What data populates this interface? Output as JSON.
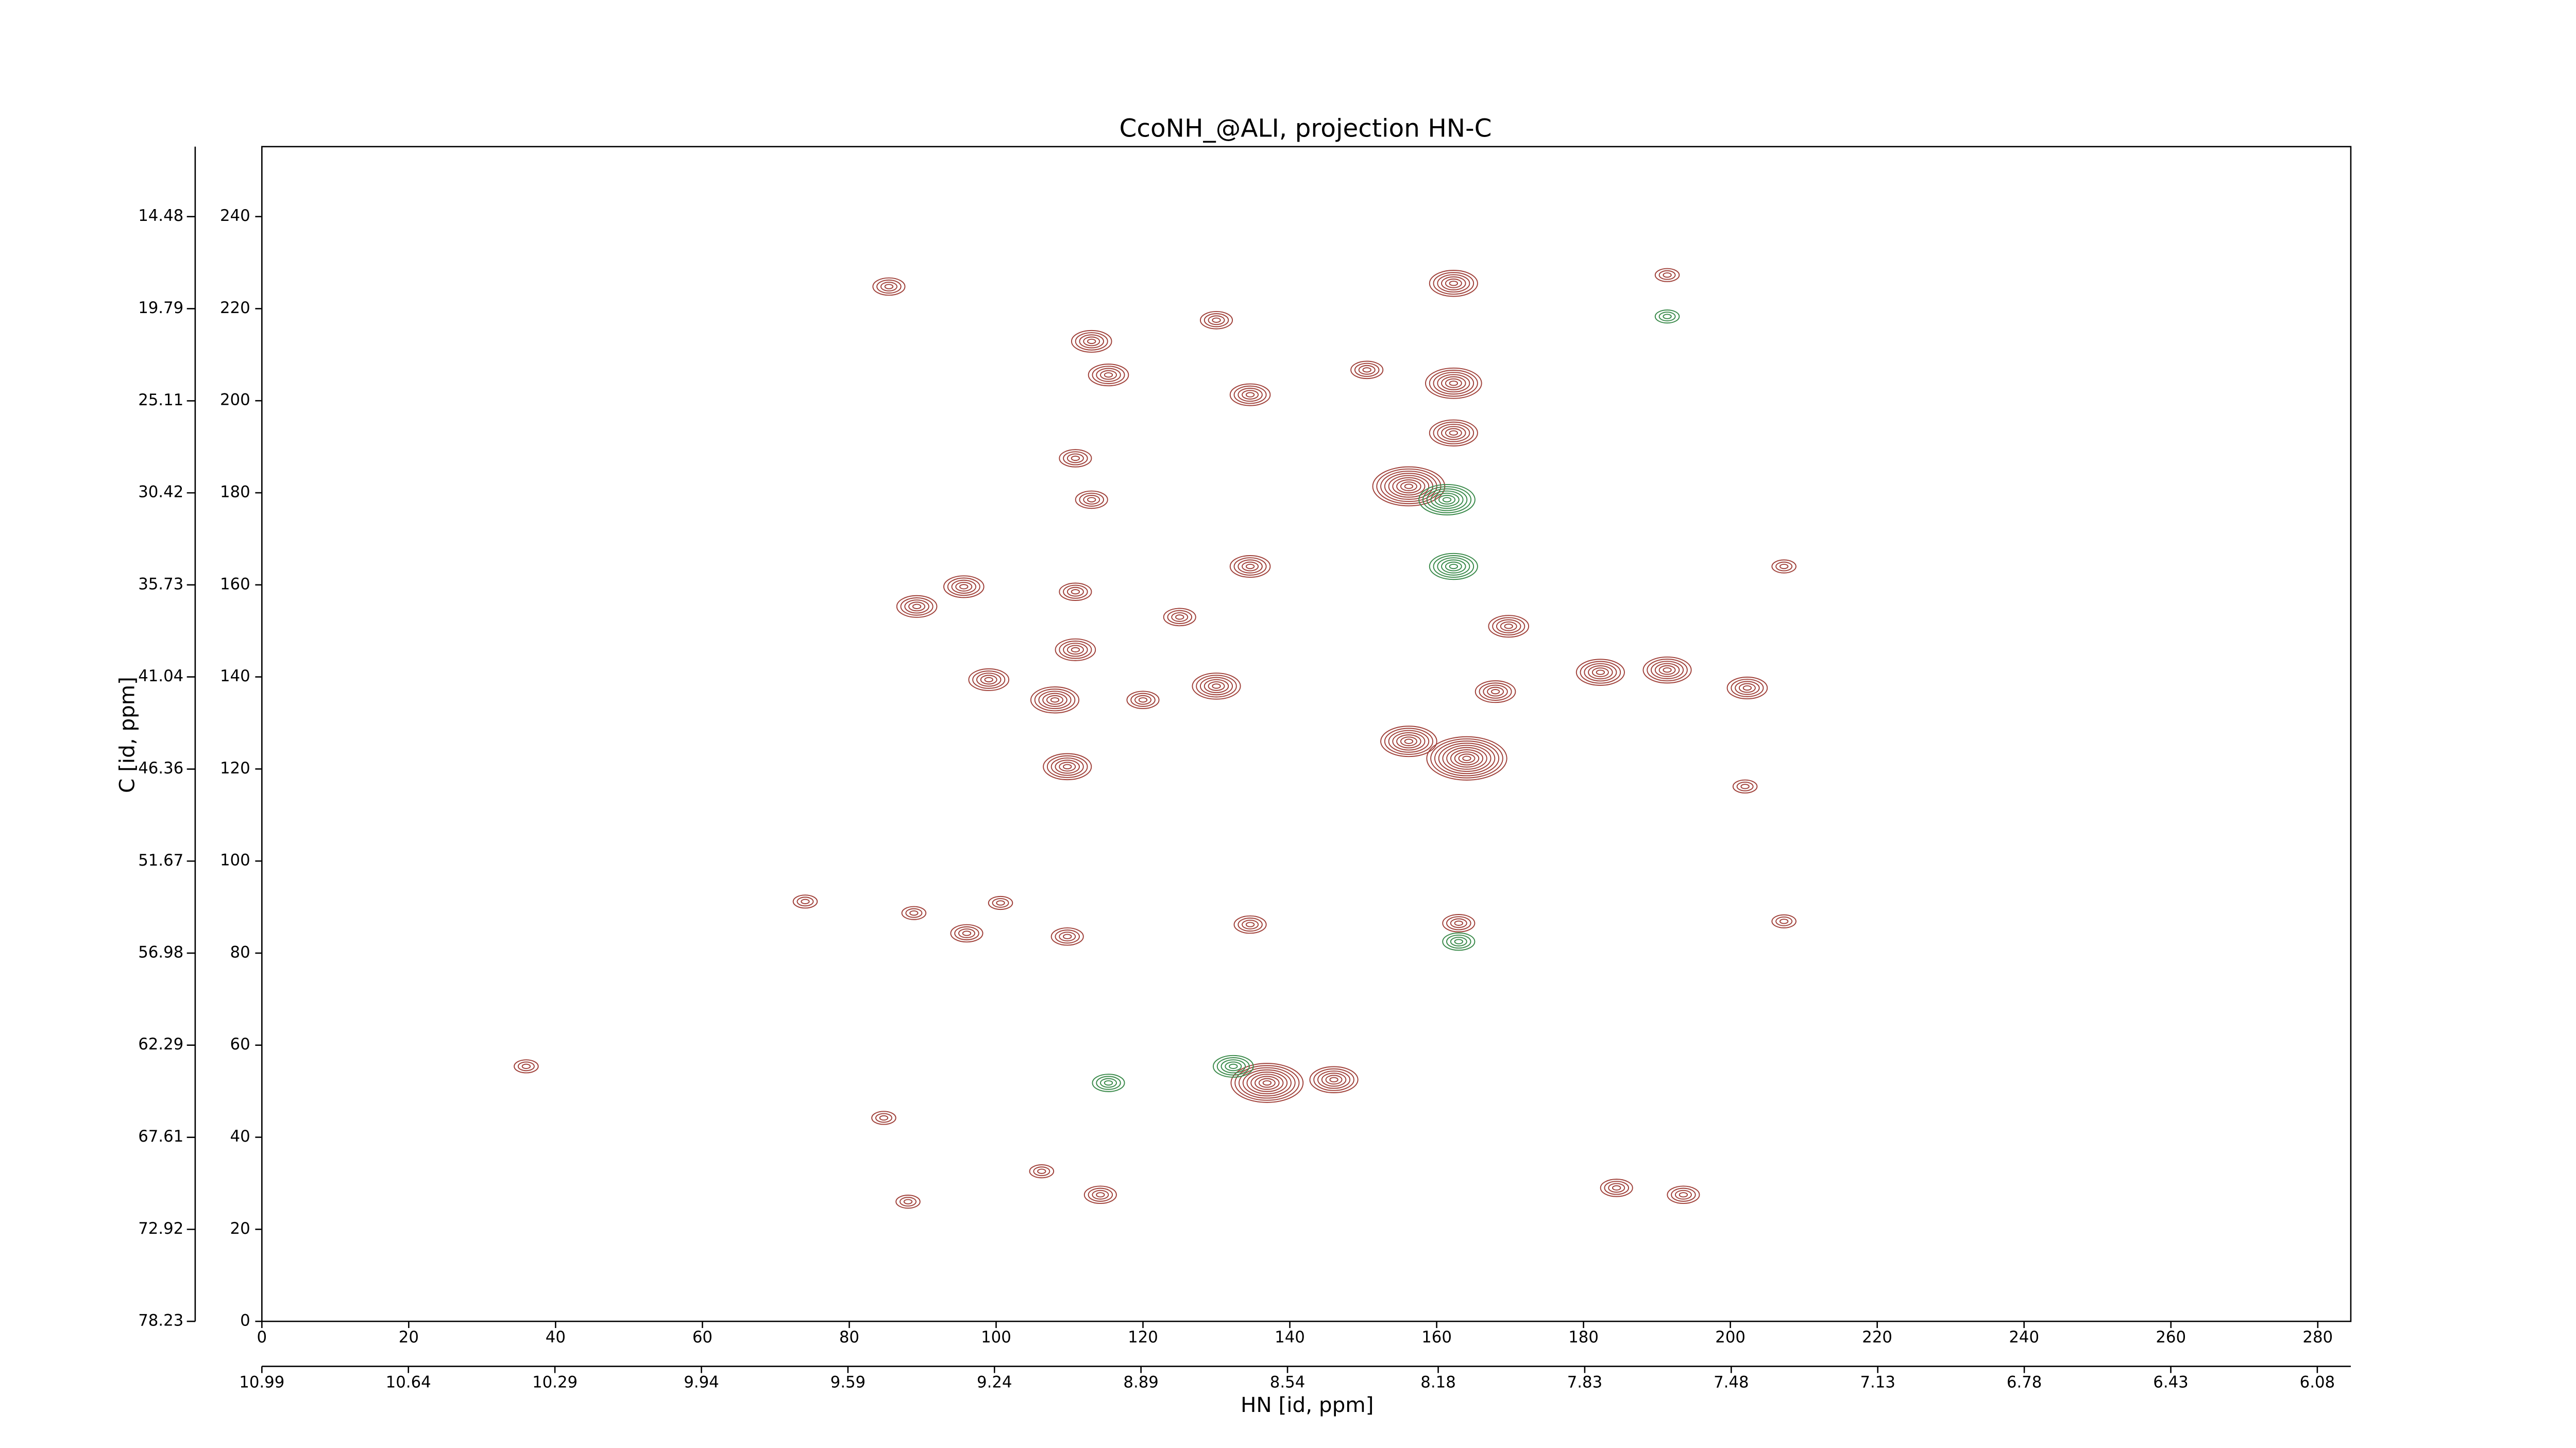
{
  "chart_data": {
    "type": "contour",
    "title": "CcoNH_@ALI, projection HN-C",
    "xlabel": "HN [id, ppm]",
    "ylabel": "C [id, ppm]",
    "xlim": [
      0,
      284.5
    ],
    "ylim": [
      0,
      255.2
    ],
    "xticks": [
      0,
      20,
      40,
      60,
      80,
      100,
      120,
      140,
      160,
      180,
      200,
      220,
      240,
      260,
      280
    ],
    "yticks": [
      0,
      20,
      40,
      60,
      80,
      100,
      120,
      140,
      160,
      180,
      200,
      220,
      240
    ],
    "x2lim": [
      10.99,
      6.0
    ],
    "x2ticks": [
      10.99,
      10.64,
      10.29,
      9.94,
      9.59,
      9.24,
      8.89,
      8.54,
      8.18,
      7.83,
      7.48,
      7.13,
      6.78,
      6.43,
      6.08
    ],
    "y2lim": [
      78.23,
      10.44
    ],
    "y2ticks": [
      78.23,
      72.92,
      67.61,
      62.29,
      56.98,
      51.67,
      46.36,
      41.04,
      35.73,
      30.42,
      25.11,
      19.79,
      14.48
    ],
    "color": "#a0413a",
    "negative_color": "#3a8a4a",
    "x": [
      162.3,
      162.3,
      162.3,
      156.2,
      161.4,
      162.3,
      164.1,
      156.2,
      169.8,
      182.3,
      191.4,
      202.3,
      168,
      99,
      108,
      109.7,
      110.8,
      125,
      130,
      120,
      95.6,
      89.2,
      110.8,
      134.6,
      113,
      115.3,
      134.6,
      150.5,
      130,
      85.4,
      113,
      110.8,
      136.9,
      146,
      132.3,
      115.3,
      163,
      163,
      96,
      109.7,
      134.6,
      88.8,
      100.6,
      74,
      184.5,
      193.6,
      84.7,
      114.2,
      88,
      106.2,
      207.3,
      202,
      207.3,
      191.4,
      191.4,
      36
    ],
    "y": [
      225.5,
      203.8,
      193,
      181.4,
      178.5,
      164,
      122.3,
      126,
      151,
      141,
      141.5,
      137.6,
      136.8,
      139.4,
      135,
      120.5,
      145.9,
      153,
      138,
      135,
      159.6,
      155.3,
      158.5,
      164,
      212.9,
      205.6,
      201.3,
      206.7,
      217.5,
      224.8,
      178.5,
      187.5,
      51.8,
      52.5,
      55.4,
      51.8,
      82.5,
      86.5,
      84.3,
      83.6,
      86.2,
      88.7,
      90.9,
      91.2,
      29,
      27.5,
      44.2,
      27.5,
      26,
      32.6,
      86.9,
      116.2,
      164,
      218.3,
      227.3,
      55.4
    ],
    "intensity": [
      6,
      7,
      6,
      9,
      -7,
      -6,
      10,
      7,
      5,
      6,
      6,
      5,
      5,
      5,
      6,
      6,
      5,
      4,
      6,
      4,
      5,
      5,
      4,
      5,
      5,
      5,
      5,
      4,
      4,
      4,
      4,
      4,
      9,
      6,
      -5,
      -4,
      -4,
      4,
      4,
      4,
      4,
      3,
      3,
      3,
      4,
      4,
      3,
      4,
      3,
      3,
      3,
      3,
      3,
      -3,
      3,
      3
    ]
  }
}
